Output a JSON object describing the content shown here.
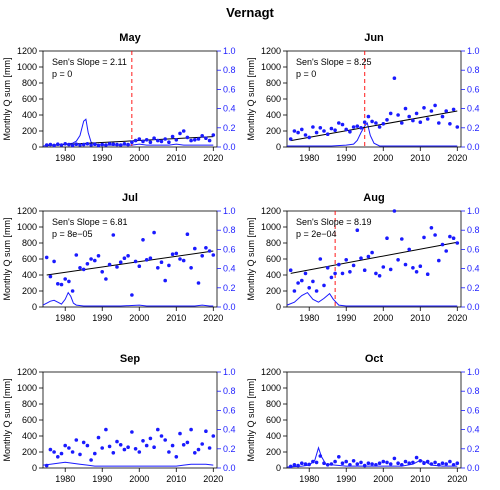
{
  "figure_title": "Vernagt",
  "colors": {
    "points": "#1a1aff",
    "trend": "#000000",
    "density": "#1a1aff",
    "change": "#ff0000",
    "right_axis": "#1a1aff"
  },
  "chart_data": [
    {
      "type": "scatter",
      "title": "May",
      "ylabel": "Monthly Q sum [mm]",
      "xlim": [
        1974,
        2021
      ],
      "ylim": [
        0,
        1200
      ],
      "y2lim": [
        0,
        1.0
      ],
      "xticks": [
        "1980",
        "1990",
        "2000",
        "2010",
        "2020"
      ],
      "yticks": [
        "0",
        "200",
        "400",
        "600",
        "800",
        "1000",
        "1200"
      ],
      "y2ticks": [
        "0.0",
        "0.2",
        "0.4",
        "0.6",
        "0.8",
        "1.0"
      ],
      "slope_label": "Sen's Slope =",
      "slope_value": "2.11",
      "p_label": "p =",
      "p_value": "0",
      "trend": [
        [
          1975,
          20
        ],
        [
          2020,
          130
        ]
      ],
      "change_year": 1998,
      "x": [
        1975,
        1976,
        1977,
        1978,
        1979,
        1980,
        1981,
        1982,
        1983,
        1984,
        1985,
        1986,
        1987,
        1988,
        1989,
        1990,
        1991,
        1992,
        1993,
        1994,
        1995,
        1996,
        1997,
        1998,
        1999,
        2000,
        2001,
        2002,
        2003,
        2004,
        2005,
        2006,
        2007,
        2008,
        2009,
        2010,
        2011,
        2012,
        2013,
        2014,
        2015,
        2016,
        2017,
        2018,
        2019,
        2020
      ],
      "y": [
        25,
        30,
        20,
        35,
        25,
        40,
        30,
        20,
        35,
        25,
        30,
        40,
        25,
        35,
        20,
        30,
        25,
        40,
        35,
        30,
        25,
        40,
        30,
        60,
        80,
        100,
        70,
        90,
        60,
        110,
        80,
        70,
        100,
        60,
        130,
        90,
        170,
        200,
        120,
        80,
        90,
        100,
        140,
        110,
        80,
        150
      ],
      "density": [
        [
          1974,
          0.01
        ],
        [
          1976,
          0.02
        ],
        [
          1978,
          0.02
        ],
        [
          1980,
          0.03
        ],
        [
          1982,
          0.04
        ],
        [
          1983,
          0.06
        ],
        [
          1984,
          0.12
        ],
        [
          1985,
          0.27
        ],
        [
          1985.6,
          0.29
        ],
        [
          1986.2,
          0.15
        ],
        [
          1987,
          0.05
        ],
        [
          1988,
          0.03
        ],
        [
          1990,
          0.02
        ],
        [
          1992,
          0.02
        ],
        [
          1994,
          0.02
        ],
        [
          1996,
          0.02
        ],
        [
          1998,
          0.02
        ],
        [
          2000,
          0.03
        ],
        [
          2002,
          0.02
        ],
        [
          2004,
          0.02
        ],
        [
          2006,
          0.02
        ],
        [
          2008,
          0.02
        ],
        [
          2010,
          0.03
        ],
        [
          2012,
          0.02
        ],
        [
          2014,
          0.02
        ],
        [
          2016,
          0.02
        ],
        [
          2018,
          0.02
        ],
        [
          2020,
          0.02
        ]
      ]
    },
    {
      "type": "scatter",
      "title": "Jun",
      "ylabel": "Monthly Q sum [mm]",
      "xlim": [
        1974,
        2021
      ],
      "ylim": [
        0,
        1200
      ],
      "y2lim": [
        0,
        1.0
      ],
      "xticks": [
        "1980",
        "1990",
        "2000",
        "2010",
        "2020"
      ],
      "yticks": [
        "0",
        "200",
        "400",
        "600",
        "800",
        "1000",
        "1200"
      ],
      "y2ticks": [
        "0.0",
        "0.2",
        "0.4",
        "0.6",
        "0.8",
        "1.0"
      ],
      "slope_label": "Sen's Slope =",
      "slope_value": "8.25",
      "p_label": "p =",
      "p_value": "0",
      "trend": [
        [
          1975,
          80
        ],
        [
          2020,
          450
        ]
      ],
      "change_year": 1995,
      "x": [
        1975,
        1976,
        1977,
        1978,
        1979,
        1980,
        1981,
        1982,
        1983,
        1984,
        1985,
        1986,
        1987,
        1988,
        1989,
        1990,
        1991,
        1992,
        1993,
        1994,
        1995,
        1996,
        1997,
        1998,
        1999,
        2000,
        2001,
        2002,
        2003,
        2004,
        2005,
        2006,
        2007,
        2008,
        2009,
        2010,
        2011,
        2012,
        2013,
        2014,
        2015,
        2016,
        2017,
        2018,
        2019,
        2020
      ],
      "y": [
        100,
        200,
        180,
        220,
        150,
        120,
        250,
        180,
        240,
        200,
        160,
        230,
        210,
        300,
        280,
        220,
        190,
        250,
        260,
        240,
        310,
        380,
        320,
        300,
        250,
        290,
        340,
        420,
        860,
        400,
        300,
        480,
        380,
        330,
        420,
        310,
        490,
        350,
        450,
        520,
        300,
        380,
        450,
        290,
        470,
        250
      ],
      "density": [
        [
          1974,
          0.01
        ],
        [
          1978,
          0.01
        ],
        [
          1982,
          0.01
        ],
        [
          1986,
          0.01
        ],
        [
          1990,
          0.02
        ],
        [
          1992,
          0.03
        ],
        [
          1993,
          0.07
        ],
        [
          1994,
          0.15
        ],
        [
          1995,
          0.22
        ],
        [
          1995.7,
          0.25
        ],
        [
          1996.5,
          0.12
        ],
        [
          1997.5,
          0.04
        ],
        [
          1999,
          0.01
        ],
        [
          2002,
          0.01
        ],
        [
          2006,
          0.01
        ],
        [
          2010,
          0.01
        ],
        [
          2014,
          0.01
        ],
        [
          2018,
          0.01
        ],
        [
          2020,
          0.01
        ]
      ]
    },
    {
      "type": "scatter",
      "title": "Jul",
      "ylabel": "Monthly Q sum [mm]",
      "xlim": [
        1974,
        2021
      ],
      "ylim": [
        0,
        1200
      ],
      "y2lim": [
        0,
        1.0
      ],
      "xticks": [
        "1980",
        "1990",
        "2000",
        "2010",
        "2020"
      ],
      "yticks": [
        "0",
        "200",
        "400",
        "600",
        "800",
        "1000",
        "1200"
      ],
      "y2ticks": [
        "0.0",
        "0.2",
        "0.4",
        "0.6",
        "0.8",
        "1.0"
      ],
      "slope_label": "Sen's Slope =",
      "slope_value": "6.81",
      "p_label": "p =",
      "p_value": "8e−05",
      "trend": [
        [
          1975,
          400
        ],
        [
          2020,
          700
        ]
      ],
      "change_year": null,
      "x": [
        1975,
        1976,
        1977,
        1978,
        1979,
        1980,
        1981,
        1982,
        1983,
        1984,
        1985,
        1986,
        1987,
        1988,
        1989,
        1990,
        1991,
        1992,
        1993,
        1994,
        1995,
        1996,
        1997,
        1998,
        1999,
        2000,
        2001,
        2002,
        2003,
        2004,
        2005,
        2006,
        2007,
        2008,
        2009,
        2010,
        2011,
        2012,
        2013,
        2014,
        2015,
        2016,
        2017,
        2018,
        2019,
        2020
      ],
      "y": [
        620,
        380,
        570,
        290,
        280,
        350,
        320,
        200,
        650,
        490,
        470,
        540,
        600,
        580,
        640,
        440,
        350,
        530,
        900,
        500,
        560,
        610,
        640,
        150,
        570,
        510,
        840,
        590,
        610,
        930,
        490,
        560,
        330,
        520,
        660,
        670,
        600,
        580,
        910,
        490,
        730,
        300,
        640,
        740,
        700,
        650
      ],
      "density": [
        [
          1974,
          0.02
        ],
        [
          1975,
          0.04
        ],
        [
          1976,
          0.06
        ],
        [
          1977,
          0.07
        ],
        [
          1978,
          0.05
        ],
        [
          1979,
          0.03
        ],
        [
          1980,
          0.08
        ],
        [
          1980.8,
          0.15
        ],
        [
          1981.5,
          0.11
        ],
        [
          1982.2,
          0.04
        ],
        [
          1983,
          0.02
        ],
        [
          1985,
          0.01
        ],
        [
          1990,
          0.01
        ],
        [
          1995,
          0.01
        ],
        [
          2000,
          0.02
        ],
        [
          2002,
          0.01
        ],
        [
          2005,
          0.01
        ],
        [
          2010,
          0.01
        ],
        [
          2015,
          0.01
        ],
        [
          2017,
          0.02
        ],
        [
          2019,
          0.01
        ],
        [
          2020,
          0.01
        ]
      ]
    },
    {
      "type": "scatter",
      "title": "Aug",
      "ylabel": "Monthly Q sum [mm]",
      "xlim": [
        1974,
        2021
      ],
      "ylim": [
        0,
        1200
      ],
      "y2lim": [
        0,
        1.0
      ],
      "xticks": [
        "1980",
        "1990",
        "2000",
        "2010",
        "2020"
      ],
      "yticks": [
        "0",
        "200",
        "400",
        "600",
        "800",
        "1000",
        "1200"
      ],
      "y2ticks": [
        "0.0",
        "0.2",
        "0.4",
        "0.6",
        "0.8",
        "1.0"
      ],
      "slope_label": "Sen's Slope =",
      "slope_value": "8.19",
      "p_label": "p =",
      "p_value": "2e−04",
      "trend": [
        [
          1975,
          420
        ],
        [
          2020,
          810
        ]
      ],
      "change_year": 1987,
      "x": [
        1975,
        1976,
        1977,
        1978,
        1979,
        1980,
        1981,
        1982,
        1983,
        1984,
        1985,
        1986,
        1987,
        1988,
        1989,
        1990,
        1991,
        1992,
        1993,
        1994,
        1995,
        1996,
        1997,
        1998,
        1999,
        2000,
        2001,
        2002,
        2003,
        2004,
        2005,
        2006,
        2007,
        2008,
        2009,
        2010,
        2011,
        2012,
        2013,
        2014,
        2015,
        2016,
        2017,
        2018,
        2019,
        2020
      ],
      "y": [
        460,
        200,
        300,
        330,
        420,
        240,
        320,
        200,
        600,
        270,
        490,
        370,
        420,
        530,
        420,
        590,
        440,
        520,
        960,
        610,
        460,
        630,
        680,
        420,
        390,
        500,
        860,
        470,
        1200,
        590,
        850,
        530,
        720,
        490,
        440,
        510,
        870,
        410,
        990,
        900,
        580,
        780,
        700,
        880,
        860,
        800
      ],
      "density": [
        [
          1974,
          0.02
        ],
        [
          1976,
          0.05
        ],
        [
          1978,
          0.12
        ],
        [
          1979.5,
          0.15
        ],
        [
          1981,
          0.08
        ],
        [
          1982.5,
          0.05
        ],
        [
          1984,
          0.09
        ],
        [
          1985.5,
          0.14
        ],
        [
          1986.5,
          0.08
        ],
        [
          1988,
          0.02
        ],
        [
          1990,
          0.01
        ],
        [
          1995,
          0.01
        ],
        [
          2000,
          0.01
        ],
        [
          2005,
          0.01
        ],
        [
          2010,
          0.01
        ],
        [
          2015,
          0.01
        ],
        [
          2020,
          0.01
        ]
      ]
    },
    {
      "type": "scatter",
      "title": "Sep",
      "ylabel": "Monthly Q sum [mm]",
      "xlim": [
        1974,
        2021
      ],
      "ylim": [
        0,
        1200
      ],
      "y2lim": [
        0,
        1.0
      ],
      "xticks": [
        "1980",
        "1990",
        "2000",
        "2010",
        "2020"
      ],
      "yticks": [
        "0",
        "200",
        "400",
        "600",
        "800",
        "1000",
        "1200"
      ],
      "y2ticks": [
        "0.0",
        "0.2",
        "0.4",
        "0.6",
        "0.8",
        "1.0"
      ],
      "slope_label": "",
      "slope_value": "",
      "p_label": "",
      "p_value": "",
      "trend": null,
      "change_year": null,
      "x": [
        1975,
        1976,
        1977,
        1978,
        1979,
        1980,
        1981,
        1982,
        1983,
        1984,
        1985,
        1986,
        1987,
        1988,
        1989,
        1990,
        1991,
        1992,
        1993,
        1994,
        1995,
        1996,
        1997,
        1998,
        1999,
        2000,
        2001,
        2002,
        2003,
        2004,
        2005,
        2006,
        2007,
        2008,
        2009,
        2010,
        2011,
        2012,
        2013,
        2014,
        2015,
        2016,
        2017,
        2018,
        2019,
        2020
      ],
      "y": [
        30,
        230,
        200,
        140,
        180,
        280,
        250,
        200,
        350,
        170,
        320,
        280,
        100,
        180,
        380,
        250,
        480,
        270,
        190,
        330,
        290,
        230,
        260,
        450,
        240,
        200,
        340,
        280,
        370,
        260,
        480,
        400,
        350,
        200,
        280,
        140,
        430,
        290,
        320,
        480,
        190,
        230,
        300,
        460,
        250,
        400
      ],
      "density": [
        [
          1974,
          0.03
        ],
        [
          1976,
          0.04
        ],
        [
          1978,
          0.05
        ],
        [
          1980,
          0.06
        ],
        [
          1982,
          0.05
        ],
        [
          1984,
          0.04
        ],
        [
          1986,
          0.03
        ],
        [
          1988,
          0.02
        ],
        [
          1990,
          0.02
        ],
        [
          1994,
          0.02
        ],
        [
          1998,
          0.02
        ],
        [
          2002,
          0.02
        ],
        [
          2006,
          0.02
        ],
        [
          2010,
          0.02
        ],
        [
          2012,
          0.03
        ],
        [
          2014,
          0.04
        ],
        [
          2016,
          0.04
        ],
        [
          2018,
          0.04
        ],
        [
          2020,
          0.03
        ]
      ]
    },
    {
      "type": "scatter",
      "title": "Oct",
      "ylabel": "Monthly Q sum [mm]",
      "xlim": [
        1974,
        2021
      ],
      "ylim": [
        0,
        1200
      ],
      "y2lim": [
        0,
        1.0
      ],
      "xticks": [
        "1980",
        "1990",
        "2000",
        "2010",
        "2020"
      ],
      "yticks": [
        "0",
        "200",
        "400",
        "600",
        "800",
        "1000",
        "1200"
      ],
      "y2ticks": [
        "0.0",
        "0.2",
        "0.4",
        "0.6",
        "0.8",
        "1.0"
      ],
      "slope_label": "",
      "slope_value": "",
      "p_label": "",
      "p_value": "",
      "trend": null,
      "change_year": null,
      "x": [
        1975,
        1976,
        1977,
        1978,
        1979,
        1980,
        1981,
        1982,
        1983,
        1984,
        1985,
        1986,
        1987,
        1988,
        1989,
        1990,
        1991,
        1992,
        1993,
        1994,
        1995,
        1996,
        1997,
        1998,
        1999,
        2000,
        2001,
        2002,
        2003,
        2004,
        2005,
        2006,
        2007,
        2008,
        2009,
        2010,
        2011,
        2012,
        2013,
        2014,
        2015,
        2016,
        2017,
        2018,
        2019,
        2020
      ],
      "y": [
        20,
        40,
        30,
        60,
        50,
        45,
        80,
        70,
        150,
        60,
        40,
        50,
        80,
        140,
        60,
        80,
        40,
        90,
        50,
        70,
        30,
        60,
        50,
        40,
        60,
        80,
        70,
        50,
        120,
        60,
        40,
        80,
        60,
        70,
        130,
        90,
        60,
        80,
        50,
        70,
        40,
        60,
        50,
        80,
        40,
        60
      ],
      "density": [
        [
          1974,
          0.01
        ],
        [
          1978,
          0.02
        ],
        [
          1980,
          0.03
        ],
        [
          1981.5,
          0.08
        ],
        [
          1982.5,
          0.21
        ],
        [
          1983.3,
          0.12
        ],
        [
          1984.5,
          0.04
        ],
        [
          1987,
          0.03
        ],
        [
          1990,
          0.02
        ],
        [
          1995,
          0.02
        ],
        [
          2000,
          0.02
        ],
        [
          2005,
          0.02
        ],
        [
          2008,
          0.04
        ],
        [
          2010,
          0.08
        ],
        [
          2011.5,
          0.06
        ],
        [
          2013,
          0.03
        ],
        [
          2016,
          0.02
        ],
        [
          2020,
          0.02
        ]
      ]
    }
  ]
}
